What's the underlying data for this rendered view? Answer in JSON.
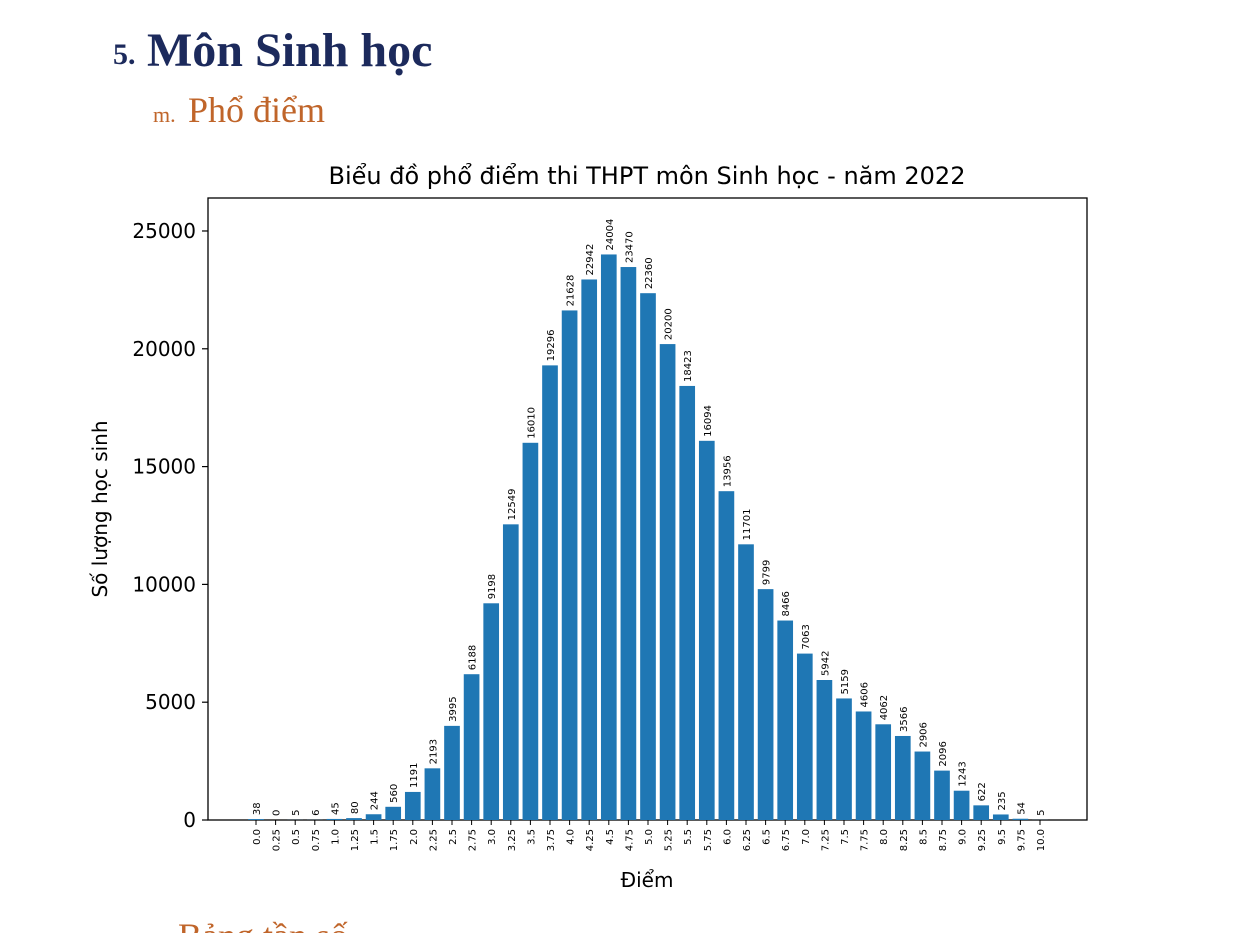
{
  "header": {
    "number": "5.",
    "title": "Môn Sinh học"
  },
  "subheader": {
    "number": "m.",
    "title": "Phổ điểm"
  },
  "chart_data": {
    "type": "bar",
    "title": "Biểu đồ phổ điểm thi THPT môn Sinh học - năm 2022",
    "x_label": "Điểm",
    "y_label": "Số lượng học sinh",
    "categories": [
      "0.0",
      "0.25",
      "0.5",
      "0.75",
      "1.0",
      "1.25",
      "1.5",
      "1.75",
      "2.0",
      "2.25",
      "2.5",
      "2.75",
      "3.0",
      "3.25",
      "3.5",
      "3.75",
      "4.0",
      "4.25",
      "4.5",
      "4.75",
      "5.0",
      "5.25",
      "5.5",
      "5.75",
      "6.0",
      "6.25",
      "6.5",
      "6.75",
      "7.0",
      "7.25",
      "7.5",
      "7.75",
      "8.0",
      "8.25",
      "8.5",
      "8.75",
      "9.0",
      "9.25",
      "9.5",
      "9.75",
      "10.0"
    ],
    "values": [
      38,
      0,
      5,
      6,
      45,
      80,
      244,
      560,
      1191,
      2193,
      3995,
      6188,
      9198,
      12549,
      16010,
      19296,
      21628,
      22942,
      24004,
      23470,
      22360,
      20200,
      18423,
      16094,
      13956,
      11701,
      9799,
      8466,
      7063,
      5942,
      5159,
      4606,
      4062,
      3566,
      2906,
      2096,
      1243,
      622,
      235,
      54,
      5
    ],
    "color": "#1f77b4",
    "ylim": [
      0,
      26400
    ],
    "yticks": [
      0,
      5000,
      10000,
      15000,
      20000,
      25000
    ]
  },
  "next_section": {
    "title": "Bảng tần số"
  }
}
